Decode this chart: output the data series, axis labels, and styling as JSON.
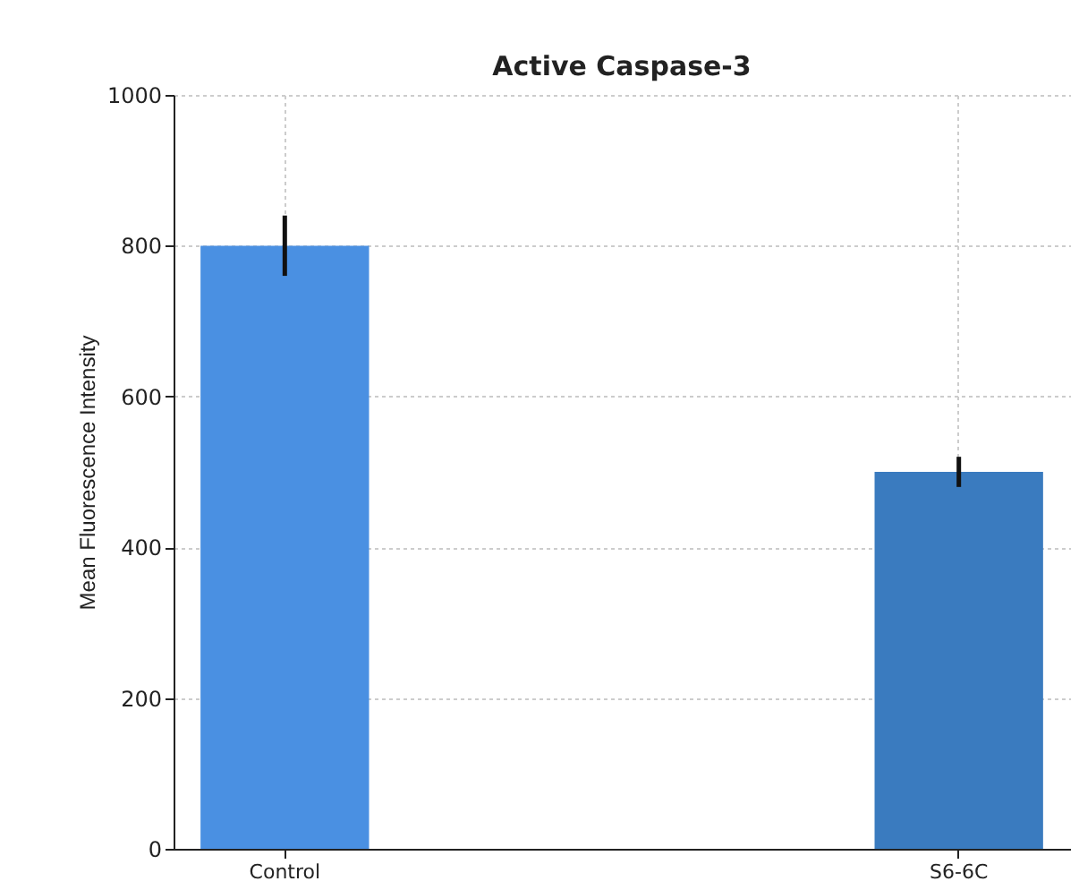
{
  "chart_data": {
    "type": "bar",
    "title": "Active Caspase-3",
    "ylabel": "Mean Fluorescence Intensity",
    "categories": [
      "Control",
      "S6-6C"
    ],
    "values": [
      800,
      500
    ],
    "colors": [
      "#4a90e2",
      "#3a7bbf"
    ],
    "errors": [
      40,
      20
    ],
    "ylim": [
      0,
      1000
    ],
    "yticks": [
      0,
      200,
      400,
      600,
      800,
      1000
    ],
    "grid": true
  }
}
